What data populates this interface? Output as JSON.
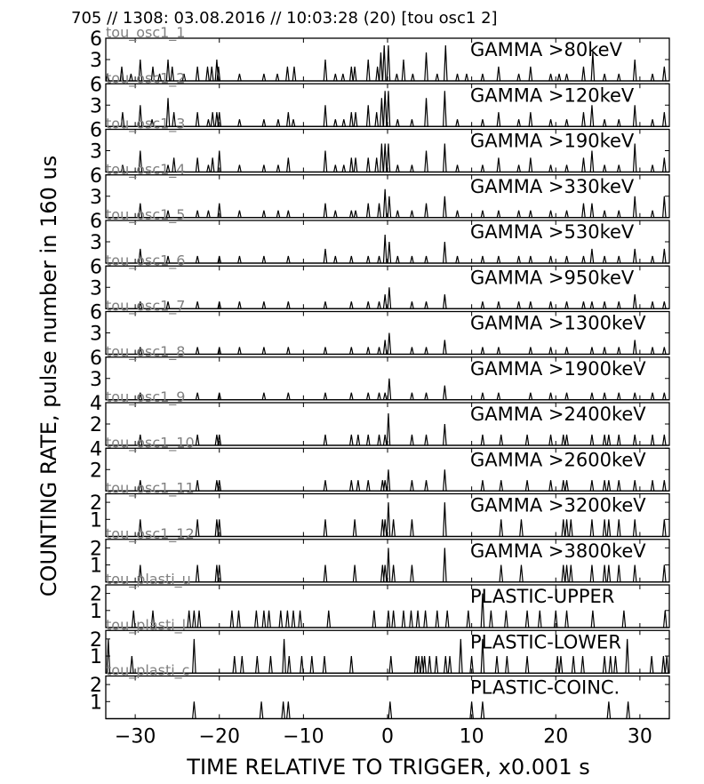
{
  "header": {
    "title": "705 // 1308:   03.08.2016 // 10:03:28 (20)  [tou osc1 2]"
  },
  "axes": {
    "xlabel": "TIME RELATIVE TO TRIGGER,   x0.001 s",
    "ylabel": "COUNTING RATE,    pulse number in 160 us",
    "xlim": [
      -33.5,
      33.5
    ],
    "xticks": [
      -30,
      -20,
      -10,
      0,
      10,
      20,
      30
    ],
    "xtick_labels": [
      "−30",
      "−20",
      "−10",
      "0",
      "10",
      "20",
      "30"
    ]
  },
  "colors": {
    "line": "#000000",
    "subtitle": "#808080",
    "background": "#ffffff"
  },
  "chart_data": [
    {
      "type": "line",
      "title": "GAMMA >80keV",
      "subtitle": "tou_osc1_1",
      "ylim": [
        0,
        6
      ],
      "yticks": [
        3,
        6
      ],
      "ytick_labels": [
        "3",
        "6"
      ],
      "x": [
        -33.3,
        -31.6,
        -30.5,
        -29.4,
        -27.9,
        -27.1,
        -26.1,
        -25.6,
        -24.2,
        -22.6,
        -21.4,
        -20.9,
        -20.3,
        -20.1,
        -17.6,
        -14.7,
        -13.1,
        -11.9,
        -11.1,
        -7.4,
        -6.2,
        -5.3,
        -4.3,
        -3.9,
        -2.3,
        -1.2,
        -0.8,
        -0.4,
        0.1,
        1.1,
        1.9,
        3.0,
        4.6,
        5.9,
        6.9,
        8.3,
        9.4,
        11.3,
        13.2,
        15.6,
        17.0,
        19.4,
        20.4,
        21.3,
        23.3,
        24.4,
        25.8,
        27.5,
        29.4,
        31.5,
        32.9
      ],
      "y": [
        1,
        2,
        1,
        3,
        2,
        1,
        3,
        2,
        1,
        2,
        2,
        2,
        3,
        2,
        1,
        1,
        1,
        2,
        2,
        3,
        1,
        1,
        2,
        2,
        3,
        2,
        4,
        5,
        5,
        1,
        3,
        1,
        4,
        1,
        5,
        1,
        1,
        1,
        2,
        1,
        2,
        1,
        1,
        1,
        2,
        4,
        1,
        1,
        3,
        1,
        2
      ]
    },
    {
      "type": "line",
      "title": "GAMMA >120keV",
      "subtitle": "tou_osc1_2",
      "ylim": [
        0,
        6
      ],
      "yticks": [
        3,
        6
      ],
      "ytick_labels": [
        "3",
        "6"
      ],
      "x": [
        -31.5,
        -29.4,
        -28.0,
        -26.1,
        -25.4,
        -22.6,
        -21.3,
        -20.8,
        -20.3,
        -20.0,
        -17.6,
        -14.7,
        -13.0,
        -11.8,
        -11.2,
        -7.4,
        -6.2,
        -5.2,
        -4.3,
        -3.8,
        -2.3,
        -1.3,
        -0.7,
        -0.3,
        0.1,
        1.2,
        2.9,
        4.6,
        6.8,
        8.3,
        11.3,
        13.2,
        15.6,
        17.0,
        19.4,
        21.3,
        23.3,
        24.3,
        25.8,
        27.5,
        29.4,
        31.5,
        32.9
      ],
      "y": [
        2,
        3,
        1,
        4,
        2,
        2,
        1,
        2,
        2,
        2,
        1,
        1,
        1,
        2,
        1,
        3,
        1,
        1,
        2,
        2,
        3,
        2,
        4,
        5,
        5,
        1,
        1,
        4,
        5,
        1,
        1,
        2,
        1,
        2,
        1,
        1,
        2,
        3,
        1,
        1,
        3,
        1,
        2
      ]
    },
    {
      "type": "line",
      "title": "GAMMA >190keV",
      "subtitle": "tou_osc1_3",
      "ylim": [
        0,
        6
      ],
      "yticks": [
        3,
        6
      ],
      "ytick_labels": [
        "3",
        "6"
      ],
      "x": [
        -31.5,
        -29.4,
        -26.1,
        -25.4,
        -22.6,
        -21.3,
        -20.8,
        -20.0,
        -17.6,
        -14.7,
        -13.0,
        -11.8,
        -7.4,
        -6.2,
        -5.2,
        -4.3,
        -3.8,
        -2.3,
        -1.3,
        -0.7,
        -0.3,
        0.1,
        1.2,
        2.9,
        4.6,
        6.8,
        8.3,
        11.3,
        13.2,
        15.6,
        17.0,
        19.4,
        21.3,
        23.3,
        24.3,
        25.8,
        27.5,
        29.4,
        31.5,
        32.9
      ],
      "y": [
        1,
        3,
        1,
        2,
        2,
        1,
        2,
        3,
        1,
        1,
        1,
        2,
        3,
        1,
        1,
        2,
        2,
        2,
        2,
        4,
        4,
        4,
        1,
        1,
        3,
        4,
        1,
        1,
        2,
        1,
        2,
        1,
        1,
        2,
        3,
        1,
        1,
        4,
        1,
        2
      ]
    },
    {
      "type": "line",
      "title": "GAMMA >330keV",
      "subtitle": "tou_osc1_4",
      "ylim": [
        0,
        6
      ],
      "yticks": [
        3,
        6
      ],
      "ytick_labels": [
        "3",
        "6"
      ],
      "x": [
        -29.4,
        -26.1,
        -22.6,
        -21.3,
        -20.0,
        -17.6,
        -14.7,
        -13.0,
        -11.8,
        -7.4,
        -6.2,
        -4.3,
        -3.8,
        -2.3,
        -1.0,
        -0.3,
        0.2,
        1.2,
        2.9,
        4.6,
        6.8,
        8.3,
        11.3,
        13.2,
        15.6,
        17.0,
        19.4,
        21.3,
        23.3,
        24.3,
        25.8,
        27.5,
        29.4,
        31.5,
        32.9
      ],
      "y": [
        2,
        1,
        1,
        1,
        2,
        1,
        1,
        1,
        1,
        2,
        1,
        1,
        1,
        2,
        2,
        4,
        3,
        1,
        1,
        2,
        3,
        1,
        1,
        1,
        1,
        1,
        1,
        1,
        2,
        2,
        1,
        1,
        3,
        1,
        3
      ]
    },
    {
      "type": "line",
      "title": "GAMMA >530keV",
      "subtitle": "tou_osc1_5",
      "ylim": [
        0,
        6
      ],
      "yticks": [
        3,
        6
      ],
      "ytick_labels": [
        "3",
        "6"
      ],
      "x": [
        -29.4,
        -26.1,
        -22.6,
        -20.0,
        -17.6,
        -14.7,
        -11.8,
        -7.4,
        -6.2,
        -4.3,
        -2.3,
        -1.0,
        -0.3,
        0.2,
        1.2,
        2.9,
        4.6,
        6.8,
        8.3,
        11.3,
        13.2,
        15.6,
        17.0,
        19.4,
        21.3,
        23.3,
        24.3,
        25.8,
        27.5,
        29.4,
        31.5,
        32.9
      ],
      "y": [
        2,
        1,
        1,
        1,
        1,
        1,
        1,
        2,
        1,
        1,
        1,
        1,
        4,
        3,
        1,
        1,
        1,
        3,
        1,
        1,
        1,
        1,
        1,
        1,
        1,
        1,
        2,
        1,
        1,
        2,
        1,
        2
      ]
    },
    {
      "type": "line",
      "title": "GAMMA >950keV",
      "subtitle": "tou_osc1_6",
      "ylim": [
        0,
        6
      ],
      "yticks": [
        3,
        6
      ],
      "ytick_labels": [
        "3",
        "6"
      ],
      "x": [
        -29.4,
        -26.1,
        -22.6,
        -20.0,
        -17.6,
        -14.7,
        -11.8,
        -7.4,
        -4.3,
        -2.3,
        -1.0,
        -0.3,
        0.2,
        2.9,
        4.6,
        6.8,
        11.3,
        13.2,
        15.6,
        17.0,
        19.4,
        21.3,
        23.3,
        24.3,
        25.8,
        27.5,
        29.4,
        31.5,
        32.9
      ],
      "y": [
        1,
        1,
        1,
        1,
        1,
        1,
        1,
        1,
        1,
        1,
        1,
        2,
        3,
        1,
        1,
        2,
        1,
        1,
        1,
        1,
        1,
        1,
        1,
        1,
        1,
        1,
        2,
        1,
        1
      ]
    },
    {
      "type": "line",
      "title": "GAMMA >1300keV",
      "subtitle": "tou_osc1_7",
      "ylim": [
        0,
        6
      ],
      "yticks": [
        3,
        6
      ],
      "ytick_labels": [
        "3",
        "6"
      ],
      "x": [
        -29.4,
        -22.6,
        -20.0,
        -17.6,
        -14.7,
        -11.8,
        -7.4,
        -4.3,
        -2.3,
        -1.0,
        -0.3,
        0.2,
        2.9,
        4.6,
        6.8,
        11.3,
        13.2,
        17.0,
        19.4,
        21.3,
        24.3,
        25.8,
        27.5,
        29.4,
        31.5,
        32.9
      ],
      "y": [
        1,
        1,
        1,
        1,
        1,
        1,
        1,
        1,
        1,
        1,
        2,
        3,
        1,
        1,
        2,
        1,
        1,
        1,
        1,
        1,
        1,
        1,
        1,
        2,
        1,
        1
      ]
    },
    {
      "type": "line",
      "title": "GAMMA >1900keV",
      "subtitle": "tou_osc1_8",
      "ylim": [
        0,
        6
      ],
      "yticks": [
        3,
        6
      ],
      "ytick_labels": [
        "3",
        "6"
      ],
      "x": [
        -29.4,
        -22.6,
        -20.0,
        -14.7,
        -11.8,
        -7.4,
        -4.3,
        -2.3,
        -1.0,
        -0.3,
        0.2,
        2.9,
        4.6,
        6.8,
        11.3,
        13.2,
        17.0,
        19.4,
        21.3,
        24.3,
        25.8,
        27.5,
        29.4,
        31.5,
        32.9
      ],
      "y": [
        1,
        1,
        1,
        1,
        1,
        1,
        1,
        1,
        1,
        1,
        3,
        1,
        1,
        2,
        1,
        1,
        1,
        1,
        1,
        1,
        1,
        1,
        1,
        1,
        1
      ]
    },
    {
      "type": "line",
      "title": "GAMMA >2400keV",
      "subtitle": "tou_osc1_9",
      "ylim": [
        0,
        4
      ],
      "yticks": [
        2,
        4
      ],
      "ytick_labels": [
        "2",
        "4"
      ],
      "x": [
        -29.4,
        -22.6,
        -20.3,
        -20.0,
        -7.4,
        -4.3,
        -3.5,
        -2.3,
        -1.0,
        -0.3,
        0.1,
        2.9,
        4.6,
        6.8,
        11.3,
        13.5,
        16.6,
        19.4,
        20.9,
        21.3,
        24.3,
        25.8,
        26.3,
        27.5,
        29.4,
        31.5,
        32.9
      ],
      "y": [
        1,
        1,
        1,
        1,
        1,
        1,
        1,
        1,
        1,
        1,
        3,
        1,
        1,
        2,
        1,
        1,
        1,
        1,
        1,
        1,
        1,
        1,
        1,
        1,
        1,
        1,
        1
      ]
    },
    {
      "type": "line",
      "title": "GAMMA >2600keV",
      "subtitle": "tou_osc1_10",
      "ylim": [
        0,
        4
      ],
      "yticks": [
        2,
        4
      ],
      "ytick_labels": [
        "2",
        "4"
      ],
      "x": [
        -29.4,
        -22.6,
        -20.3,
        -20.0,
        -7.4,
        -4.3,
        -3.5,
        -2.3,
        -0.6,
        -0.3,
        0.1,
        2.9,
        4.6,
        6.8,
        11.3,
        13.5,
        16.6,
        19.4,
        20.9,
        21.3,
        24.3,
        25.8,
        26.3,
        27.5,
        29.4,
        31.5,
        32.9
      ],
      "y": [
        1,
        1,
        1,
        1,
        1,
        1,
        1,
        1,
        1,
        1,
        2,
        1,
        1,
        2,
        1,
        1,
        1,
        1,
        1,
        1,
        1,
        1,
        1,
        1,
        1,
        1,
        1
      ]
    },
    {
      "type": "line",
      "title": "GAMMA >3200keV",
      "subtitle": "tou_osc1_11",
      "ylim": [
        0,
        2.5
      ],
      "yticks": [
        1,
        2
      ],
      "ytick_labels": [
        "1",
        "2"
      ],
      "x": [
        -29.4,
        -22.6,
        -20.3,
        -20.0,
        -7.4,
        -3.9,
        -0.6,
        -0.3,
        0.1,
        0.7,
        2.9,
        6.8,
        13.5,
        15.9,
        20.9,
        21.3,
        21.8,
        24.3,
        25.8,
        26.3,
        27.5,
        29.4,
        32.9
      ],
      "y": [
        1,
        1,
        1,
        1,
        1,
        1,
        1,
        1,
        2,
        1,
        1,
        2,
        1,
        1,
        1,
        1,
        1,
        1,
        1,
        1,
        1,
        1,
        1
      ]
    },
    {
      "type": "line",
      "title": "GAMMA >3800keV",
      "subtitle": "tou_osc1_12",
      "ylim": [
        0,
        2.5
      ],
      "yticks": [
        1,
        2
      ],
      "ytick_labels": [
        "1",
        "2"
      ],
      "x": [
        -29.4,
        -22.6,
        -20.3,
        -20.0,
        -7.4,
        -3.9,
        -0.6,
        -0.3,
        0.1,
        0.7,
        2.9,
        6.8,
        13.5,
        15.9,
        20.9,
        21.3,
        21.8,
        24.3,
        25.8,
        26.3,
        27.5,
        29.4,
        32.9
      ],
      "y": [
        1,
        1,
        1,
        1,
        1,
        1,
        1,
        1,
        2,
        1,
        1,
        2,
        1,
        1,
        1,
        1,
        1,
        1,
        1,
        1,
        1,
        1,
        1
      ]
    },
    {
      "type": "line",
      "title": "PLASTIC-UPPER",
      "subtitle": "tou_plasti_u",
      "ylim": [
        0,
        2.5
      ],
      "yticks": [
        1,
        2
      ],
      "ytick_labels": [
        "1",
        "2"
      ],
      "x": [
        -30.2,
        -27.9,
        -23.6,
        -23.0,
        -22.4,
        -18.5,
        -17.7,
        -15.6,
        -14.7,
        -14.1,
        -12.7,
        -11.9,
        -11.2,
        -10.4,
        -7.0,
        -1.6,
        0.1,
        0.7,
        1.9,
        2.8,
        3.6,
        4.5,
        5.9,
        7.1,
        9.6,
        11.3,
        12.3,
        14.1,
        16.6,
        18.1,
        20.0,
        21.3,
        24.4,
        28.1,
        33.0
      ],
      "y": [
        1,
        1,
        1,
        1,
        1,
        1,
        1,
        1,
        1,
        1,
        1,
        1,
        1,
        1,
        1,
        1,
        1,
        1,
        1,
        1,
        1,
        1,
        1,
        1,
        1,
        2,
        1,
        1,
        1,
        1,
        1,
        1,
        1,
        1,
        1
      ]
    },
    {
      "type": "line",
      "title": "PLASTIC-LOWER",
      "subtitle": "tou_plasti_l",
      "ylim": [
        0,
        2.5
      ],
      "yticks": [
        1,
        2
      ],
      "ytick_labels": [
        "1",
        "2"
      ],
      "x": [
        -33.2,
        -30.4,
        -23.0,
        -18.2,
        -17.3,
        -15.5,
        -13.9,
        -12.3,
        -11.7,
        -10.2,
        -9.0,
        -7.5,
        -4.3,
        0.4,
        3.4,
        3.7,
        4.1,
        4.4,
        5.0,
        5.8,
        6.9,
        7.4,
        8.7,
        10.0,
        11.3,
        13.0,
        14.2,
        16.6,
        20.2,
        20.6,
        22.1,
        23.2,
        25.8,
        26.5,
        27.1,
        28.5,
        31.4,
        32.8,
        33.2
      ],
      "y": [
        2,
        1,
        2,
        1,
        1,
        1,
        1,
        2,
        1,
        1,
        1,
        1,
        1,
        1,
        1,
        1,
        1,
        1,
        1,
        1,
        1,
        1,
        2,
        1,
        2,
        1,
        1,
        1,
        1,
        1,
        1,
        1,
        1,
        1,
        1,
        2,
        1,
        1,
        1
      ]
    },
    {
      "type": "line",
      "title": "PLASTIC-COINC.",
      "subtitle": "tou_plasti_c",
      "ylim": [
        0,
        2.5
      ],
      "yticks": [
        1,
        2
      ],
      "ytick_labels": [
        "1",
        "2"
      ],
      "x": [
        -23.0,
        -15.0,
        -12.4,
        -11.8,
        0.3,
        10.0,
        11.3,
        26.3,
        28.6
      ],
      "y": [
        1,
        1,
        1,
        1,
        1,
        1,
        1,
        1,
        1
      ]
    }
  ]
}
